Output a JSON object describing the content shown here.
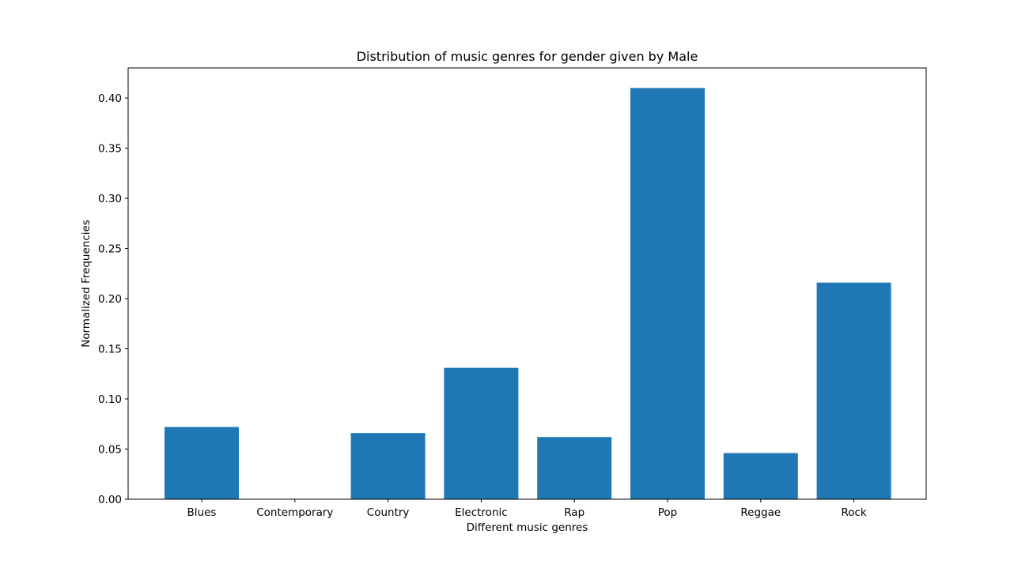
{
  "chart_data": {
    "type": "bar",
    "title": "Distribution of music genres for gender given by Male",
    "xlabel": "Different music genres",
    "ylabel": "Normalized Frequencies",
    "categories": [
      "Blues",
      "Contemporary",
      "Country",
      "Electronic",
      "Rap",
      "Pop",
      "Reggae",
      "Rock"
    ],
    "values": [
      0.072,
      0.0,
      0.066,
      0.131,
      0.062,
      0.41,
      0.046,
      0.216
    ],
    "ylim": [
      0,
      0.43
    ],
    "yticks": [
      "0.00",
      "0.05",
      "0.10",
      "0.15",
      "0.20",
      "0.25",
      "0.30",
      "0.35",
      "0.40"
    ],
    "grid": false,
    "bar_color": "#1f77b4"
  }
}
